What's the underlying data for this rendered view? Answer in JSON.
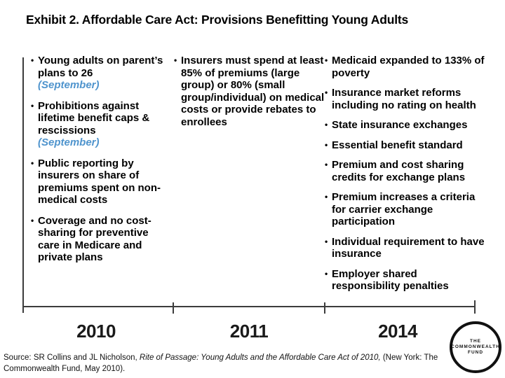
{
  "title": "Exhibit 2. Affordable Care Act: Provisions Benefitting Young Adults",
  "colors": {
    "note_blue": "#4F94CD",
    "timeline_line": "#3C3C3C",
    "text": "#000000"
  },
  "columns": [
    {
      "year": "2010",
      "items": [
        {
          "text": "Young adults on parent’s plans to 26",
          "note": "(September)"
        },
        {
          "text": "Prohibitions against lifetime benefit caps & rescissions",
          "note": "(September)"
        },
        {
          "text": "Public reporting by insurers on share of premiums spent on non-medical costs"
        },
        {
          "text": "Coverage and no cost-sharing for preventive care in Medicare and private plans"
        }
      ]
    },
    {
      "year": "2011",
      "items": [
        {
          "text": "Insurers must spend at least 85% of premiums (large group) or 80% (small group/individual) on medical costs or provide rebates to enrollees"
        }
      ]
    },
    {
      "year": "2014",
      "items": [
        {
          "text": "Medicaid expanded to 133% of poverty"
        },
        {
          "text": "Insurance market reforms including no rating on health"
        },
        {
          "text": "State insurance exchanges"
        },
        {
          "text": "Essential benefit standard"
        },
        {
          "text": "Premium and cost sharing credits for exchange plans"
        },
        {
          "text": "Premium increases a criteria for carrier exchange participation"
        },
        {
          "text": "Individual requirement to have insurance"
        },
        {
          "text": "Employer shared responsibility penalties"
        }
      ]
    }
  ],
  "timeline": {
    "labels": [
      "2010",
      "2011",
      "2014"
    ]
  },
  "source": {
    "prefix": "Source: SR Collins and JL Nicholson, ",
    "cited_title": "Rite of Passage: Young Adults and the Affordable Care Act of 2010,",
    "suffix": " (New York: The Commonwealth Fund, May 2010)."
  },
  "logo": {
    "line1": "THE",
    "line2": "COMMONWEALTH",
    "line3": "FUND"
  }
}
